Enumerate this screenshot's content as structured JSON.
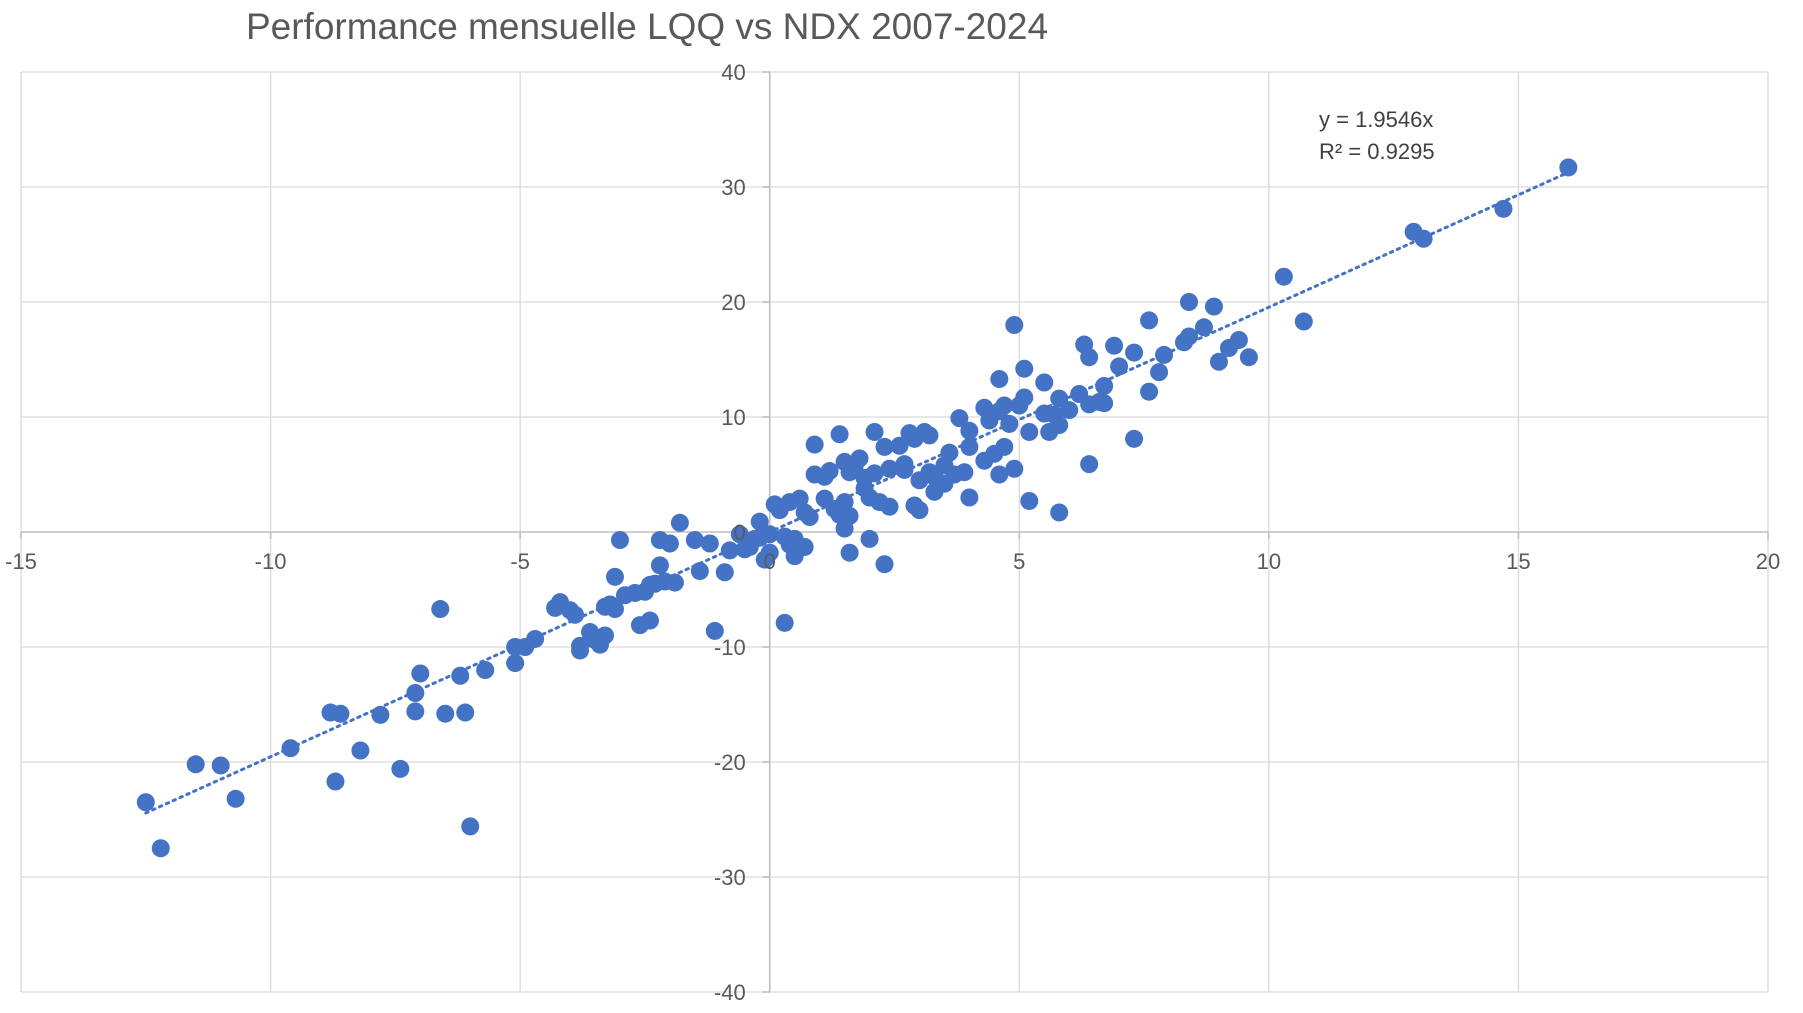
{
  "chart_data": {
    "type": "scatter",
    "title": "Performance mensuelle LQQ vs NDX 2007-2024",
    "xlabel": "",
    "ylabel": "",
    "xlim": [
      -15,
      20
    ],
    "ylim": [
      -40,
      40
    ],
    "x_ticks": [
      -15,
      -10,
      -5,
      0,
      5,
      10,
      15,
      20
    ],
    "y_ticks": [
      -40,
      -30,
      -20,
      -10,
      0,
      10,
      20,
      30,
      40
    ],
    "grid": true,
    "legend": "none",
    "marker_color": "#4472C4",
    "trendline": {
      "type": "linear",
      "slope": 1.9546,
      "intercept": 0,
      "x_range": [
        -12.5,
        16
      ],
      "color": "#4472C4",
      "equation_label": "y = 1.9546x",
      "r2_label": "R² = 0.9295"
    },
    "series": [
      {
        "name": "LQQ vs NDX",
        "points": [
          [
            -12.5,
            -23.5
          ],
          [
            -12.2,
            -27.5
          ],
          [
            -11.5,
            -20.2
          ],
          [
            -11.0,
            -20.3
          ],
          [
            -10.7,
            -23.2
          ],
          [
            -9.6,
            -18.8
          ],
          [
            -8.8,
            -15.7
          ],
          [
            -8.6,
            -15.8
          ],
          [
            -8.7,
            -21.7
          ],
          [
            -8.2,
            -19.0
          ],
          [
            -7.8,
            -15.9
          ],
          [
            -7.4,
            -20.6
          ],
          [
            -7.1,
            -15.6
          ],
          [
            -7.1,
            -14.0
          ],
          [
            -7.0,
            -12.3
          ],
          [
            -6.6,
            -6.7
          ],
          [
            -6.5,
            -15.8
          ],
          [
            -6.2,
            -12.5
          ],
          [
            -6.1,
            -15.7
          ],
          [
            -6.0,
            -25.6
          ],
          [
            -5.7,
            -12.0
          ],
          [
            -5.1,
            -10.0
          ],
          [
            -5.1,
            -11.4
          ],
          [
            -4.9,
            -10.0
          ],
          [
            -4.7,
            -9.3
          ],
          [
            -4.3,
            -6.6
          ],
          [
            -4.2,
            -6.1
          ],
          [
            -4.0,
            -6.8
          ],
          [
            -3.9,
            -7.2
          ],
          [
            -3.8,
            -9.9
          ],
          [
            -3.8,
            -10.3
          ],
          [
            -3.6,
            -8.7
          ],
          [
            -3.5,
            -9.4
          ],
          [
            -3.4,
            -9.8
          ],
          [
            -3.3,
            -9.0
          ],
          [
            -3.3,
            -6.5
          ],
          [
            -3.2,
            -6.3
          ],
          [
            -3.1,
            -6.7
          ],
          [
            -3.1,
            -3.9
          ],
          [
            -3.0,
            -0.7
          ],
          [
            -2.9,
            -5.5
          ],
          [
            -2.7,
            -5.3
          ],
          [
            -2.6,
            -8.1
          ],
          [
            -2.5,
            -5.2
          ],
          [
            -2.4,
            -7.7
          ],
          [
            -2.4,
            -4.6
          ],
          [
            -2.3,
            -4.5
          ],
          [
            -2.2,
            -0.7
          ],
          [
            -2.2,
            -2.9
          ],
          [
            -2.1,
            -4.3
          ],
          [
            -2.0,
            -1.0
          ],
          [
            -1.9,
            -4.4
          ],
          [
            -1.8,
            0.8
          ],
          [
            -1.5,
            -0.7
          ],
          [
            -1.4,
            -3.4
          ],
          [
            -1.2,
            -1.0
          ],
          [
            -1.1,
            -8.6
          ],
          [
            -0.9,
            -3.5
          ],
          [
            -0.8,
            -1.6
          ],
          [
            -0.6,
            -0.2
          ],
          [
            -0.5,
            -1.5
          ],
          [
            -0.4,
            -1.3
          ],
          [
            -0.3,
            -0.6
          ],
          [
            -0.2,
            -0.5
          ],
          [
            -0.2,
            0.9
          ],
          [
            -0.1,
            -2.4
          ],
          [
            0.0,
            -1.8
          ],
          [
            0.0,
            -0.2
          ],
          [
            0.1,
            2.4
          ],
          [
            0.2,
            1.9
          ],
          [
            0.3,
            -0.4
          ],
          [
            0.3,
            -7.9
          ],
          [
            0.4,
            2.6
          ],
          [
            0.4,
            -1.1
          ],
          [
            0.5,
            -2.1
          ],
          [
            0.5,
            -0.6
          ],
          [
            0.6,
            2.9
          ],
          [
            0.7,
            1.7
          ],
          [
            0.7,
            -1.3
          ],
          [
            0.8,
            1.3
          ],
          [
            0.9,
            7.6
          ],
          [
            0.9,
            5.0
          ],
          [
            1.1,
            4.8
          ],
          [
            1.1,
            2.9
          ],
          [
            1.2,
            5.3
          ],
          [
            1.3,
            2.0
          ],
          [
            1.4,
            8.5
          ],
          [
            1.4,
            1.5
          ],
          [
            1.5,
            6.1
          ],
          [
            1.5,
            2.6
          ],
          [
            1.5,
            0.3
          ],
          [
            1.6,
            5.2
          ],
          [
            1.6,
            1.4
          ],
          [
            1.6,
            -1.8
          ],
          [
            1.7,
            5.7
          ],
          [
            1.8,
            6.4
          ],
          [
            1.9,
            4.7
          ],
          [
            1.9,
            3.8
          ],
          [
            2.0,
            -0.6
          ],
          [
            2.0,
            3.0
          ],
          [
            2.1,
            8.7
          ],
          [
            2.1,
            5.1
          ],
          [
            2.2,
            2.6
          ],
          [
            2.3,
            -2.8
          ],
          [
            2.3,
            7.4
          ],
          [
            2.4,
            5.5
          ],
          [
            2.4,
            2.2
          ],
          [
            2.6,
            7.5
          ],
          [
            2.7,
            5.9
          ],
          [
            2.7,
            5.4
          ],
          [
            2.8,
            8.6
          ],
          [
            2.9,
            8.1
          ],
          [
            2.9,
            2.3
          ],
          [
            3.0,
            1.9
          ],
          [
            3.0,
            4.5
          ],
          [
            3.1,
            8.7
          ],
          [
            3.2,
            8.4
          ],
          [
            3.2,
            5.2
          ],
          [
            3.3,
            4.8
          ],
          [
            3.3,
            3.5
          ],
          [
            3.5,
            5.8
          ],
          [
            3.5,
            4.2
          ],
          [
            3.6,
            6.9
          ],
          [
            3.7,
            5.0
          ],
          [
            3.8,
            9.9
          ],
          [
            3.9,
            5.2
          ],
          [
            4.0,
            8.8
          ],
          [
            4.0,
            7.4
          ],
          [
            4.0,
            3.0
          ],
          [
            4.3,
            10.8
          ],
          [
            4.3,
            6.2
          ],
          [
            4.4,
            9.7
          ],
          [
            4.5,
            6.8
          ],
          [
            4.6,
            13.3
          ],
          [
            4.6,
            10.5
          ],
          [
            4.6,
            5.0
          ],
          [
            4.7,
            11.0
          ],
          [
            4.7,
            7.4
          ],
          [
            4.8,
            9.4
          ],
          [
            4.9,
            18.0
          ],
          [
            4.9,
            5.5
          ],
          [
            5.0,
            11.0
          ],
          [
            5.1,
            14.2
          ],
          [
            5.1,
            11.7
          ],
          [
            5.2,
            8.7
          ],
          [
            5.2,
            2.7
          ],
          [
            5.5,
            13.0
          ],
          [
            5.5,
            10.3
          ],
          [
            5.6,
            8.7
          ],
          [
            5.7,
            10.2
          ],
          [
            5.8,
            11.6
          ],
          [
            5.8,
            9.3
          ],
          [
            5.8,
            1.7
          ],
          [
            6.0,
            10.6
          ],
          [
            6.2,
            12.0
          ],
          [
            6.3,
            16.3
          ],
          [
            6.4,
            11.1
          ],
          [
            6.4,
            15.2
          ],
          [
            6.4,
            5.9
          ],
          [
            6.6,
            11.3
          ],
          [
            6.7,
            12.7
          ],
          [
            6.7,
            11.2
          ],
          [
            6.9,
            16.2
          ],
          [
            7.0,
            14.4
          ],
          [
            7.3,
            15.6
          ],
          [
            7.3,
            8.1
          ],
          [
            7.6,
            12.2
          ],
          [
            7.6,
            18.4
          ],
          [
            7.8,
            13.9
          ],
          [
            7.9,
            15.4
          ],
          [
            8.3,
            16.5
          ],
          [
            8.4,
            17.0
          ],
          [
            8.4,
            20.0
          ],
          [
            8.7,
            17.8
          ],
          [
            8.9,
            19.6
          ],
          [
            9.0,
            14.8
          ],
          [
            9.2,
            16.0
          ],
          [
            9.4,
            16.7
          ],
          [
            9.6,
            15.2
          ],
          [
            10.3,
            22.2
          ],
          [
            10.7,
            18.3
          ],
          [
            12.9,
            26.1
          ],
          [
            13.1,
            25.5
          ],
          [
            14.7,
            28.1
          ],
          [
            16.0,
            31.7
          ]
        ]
      }
    ]
  }
}
